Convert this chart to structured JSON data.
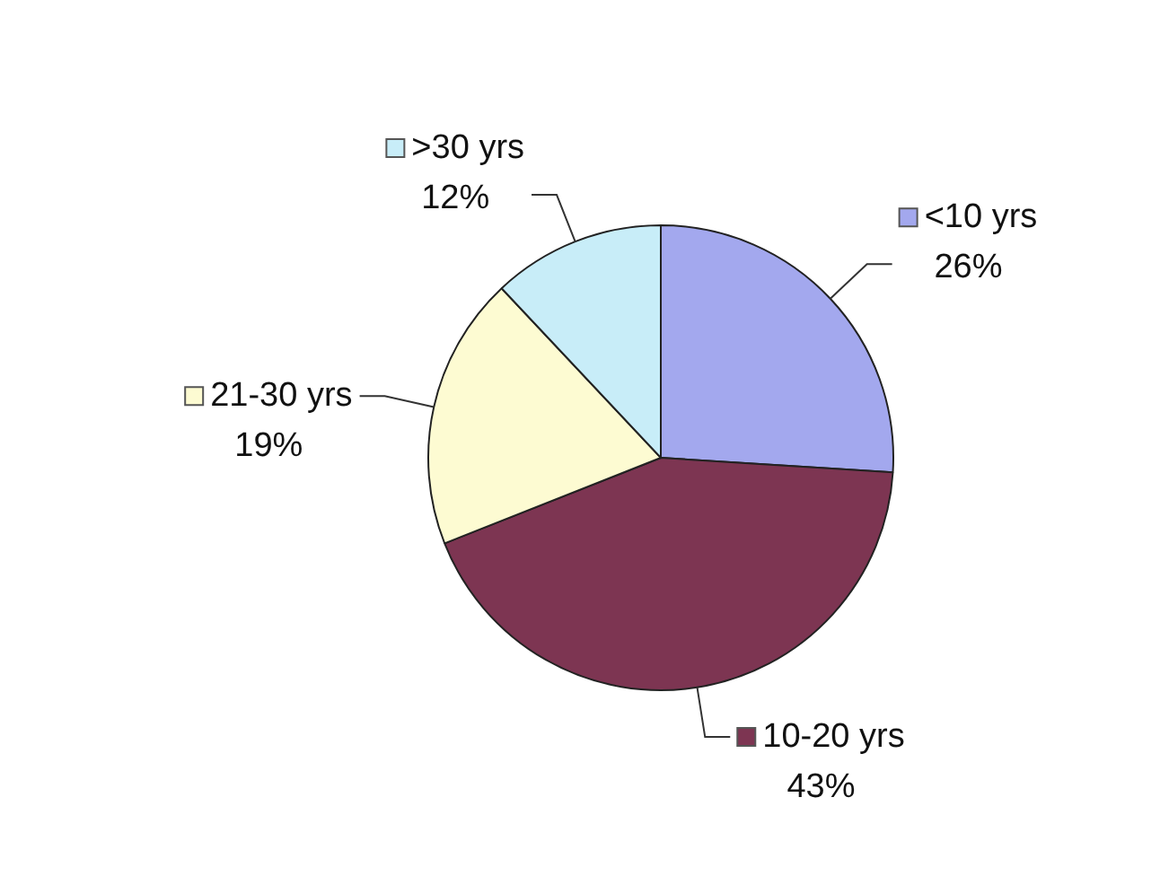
{
  "chart_data": {
    "type": "pie",
    "categories": [
      "<10 yrs",
      "10-20 yrs",
      "21-30 yrs",
      ">30 yrs"
    ],
    "values": [
      26,
      43,
      19,
      12
    ],
    "value_labels": [
      "26%",
      "43%",
      "19%",
      "12%"
    ],
    "colors": [
      "#a3a8ee",
      "#7d3552",
      "#fdfbd2",
      "#c8edf8"
    ],
    "legend": "top left"
  }
}
